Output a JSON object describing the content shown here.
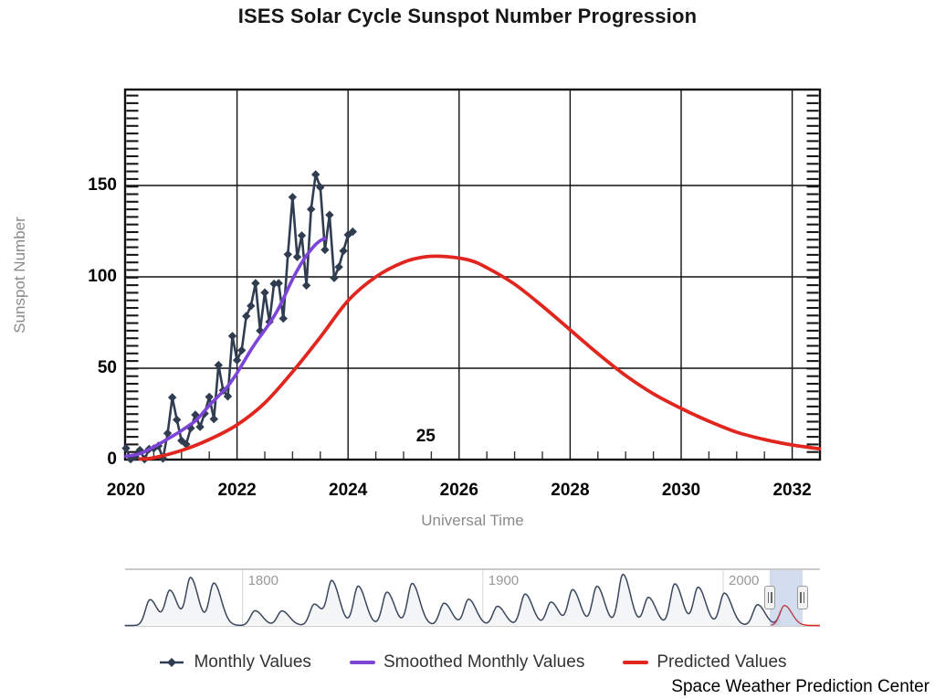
{
  "title": "ISES Solar Cycle Sunspot Number Progression",
  "credit": "Space Weather Prediction Center",
  "cycle_annotation": "25",
  "chart_data": {
    "type": "line",
    "title": "ISES Solar Cycle Sunspot Number Progression",
    "xlabel": "Universal Time",
    "ylabel": "Sunspot Number",
    "xlim": [
      2020,
      2032.5
    ],
    "ylim": [
      0,
      200
    ],
    "x_tick_years": [
      2020,
      2022,
      2024,
      2026,
      2028,
      2030,
      2032
    ],
    "x_tick_labels": [
      "2020",
      "2022",
      "2024",
      "2026",
      "2028",
      "2030",
      "2032"
    ],
    "y_tick_values": [
      0,
      50,
      100,
      150
    ],
    "y_tick_labels": [
      "0",
      "50",
      "100",
      "150"
    ],
    "grid": true,
    "legend_position": "bottom",
    "annotation": {
      "text": "25",
      "x": 2025.4,
      "y": 12
    },
    "series": [
      {
        "name": "Monthly Values",
        "color": "#303C50",
        "marker": "diamond",
        "x_start": 2020.0,
        "x_step_months": 1,
        "values": [
          6.2,
          0.2,
          1.5,
          5.2,
          0.2,
          5.8,
          6.1,
          7.5,
          0.6,
          14.4,
          34.0,
          21.8,
          10.4,
          8.4,
          17.2,
          24.5,
          17.9,
          25.2,
          34.3,
          22.2,
          51.7,
          37.9,
          34.6,
          67.6,
          54.4,
          59.8,
          78.5,
          84.1,
          96.5,
          70.5,
          91.4,
          75.4,
          96.2,
          96.5,
          77.2,
          112.3,
          143.6,
          110.9,
          122.6,
          95.3,
          137.0,
          156.0,
          149.0,
          114.8,
          133.9,
          99.4,
          105.4,
          114.2,
          123.0,
          124.7
        ]
      },
      {
        "name": "Smoothed Monthly Values",
        "color": "#7D44D8",
        "marker": "none",
        "x_start": 2020.0,
        "x_step_months": 1,
        "values": [
          1.8,
          2.2,
          2.6,
          3.2,
          4.3,
          5.6,
          7.0,
          8.3,
          9.8,
          11.3,
          12.8,
          14.3,
          15.9,
          17.6,
          19.3,
          21.2,
          23.8,
          26.7,
          29.6,
          32.3,
          34.8,
          37.4,
          40.2,
          43.6,
          47.4,
          51.6,
          55.8,
          60.0,
          63.9,
          67.4,
          70.9,
          74.5,
          78.4,
          82.9,
          88.0,
          93.4,
          98.7,
          103.5,
          107.8,
          111.6,
          114.9,
          117.7,
          119.8,
          121.0
        ]
      },
      {
        "name": "Predicted Values",
        "color": "#E0261E",
        "marker": "none",
        "points": [
          [
            2020.25,
            0.3
          ],
          [
            2020.5,
            1
          ],
          [
            2021,
            5
          ],
          [
            2021.5,
            11
          ],
          [
            2022,
            19
          ],
          [
            2022.5,
            31
          ],
          [
            2023,
            48
          ],
          [
            2023.5,
            67
          ],
          [
            2024,
            87
          ],
          [
            2024.5,
            100
          ],
          [
            2025,
            108
          ],
          [
            2025.4,
            111
          ],
          [
            2025.8,
            111
          ],
          [
            2026.2,
            109
          ],
          [
            2026.5,
            105
          ],
          [
            2027,
            96
          ],
          [
            2027.5,
            84
          ],
          [
            2028,
            71
          ],
          [
            2028.5,
            58
          ],
          [
            2029,
            46
          ],
          [
            2029.5,
            36
          ],
          [
            2030,
            28
          ],
          [
            2030.5,
            21
          ],
          [
            2031,
            15
          ],
          [
            2031.5,
            11
          ],
          [
            2032,
            8
          ],
          [
            2032.6,
            5.5
          ]
        ]
      }
    ]
  },
  "navigator": {
    "type": "area",
    "range_start_year": 1751,
    "range_end_year": 2040.3,
    "observed_end_year": 2024.15,
    "labels": [
      {
        "text": "1800",
        "year": 1800
      },
      {
        "text": "1900",
        "year": 1900
      },
      {
        "text": "2000",
        "year": 2000
      }
    ],
    "cycles_peak_year_amplitude": [
      [
        1761.5,
        144
      ],
      [
        1769.8,
        193
      ],
      [
        1778.4,
        264
      ],
      [
        1788.1,
        235
      ],
      [
        1805.2,
        82
      ],
      [
        1816.4,
        81
      ],
      [
        1829.9,
        119
      ],
      [
        1837.2,
        244
      ],
      [
        1848.1,
        219
      ],
      [
        1860.1,
        186
      ],
      [
        1870.6,
        234
      ],
      [
        1883.9,
        124
      ],
      [
        1894.1,
        146
      ],
      [
        1906.1,
        107
      ],
      [
        1917.6,
        175
      ],
      [
        1928.4,
        130
      ],
      [
        1937.4,
        198
      ],
      [
        1947.5,
        218
      ],
      [
        1958.3,
        285
      ],
      [
        1968.9,
        156
      ],
      [
        1979.9,
        232
      ],
      [
        1989.6,
        212
      ],
      [
        2000.5,
        180
      ],
      [
        2014.3,
        116
      ],
      [
        2025.5,
        111
      ]
    ],
    "predicted_cycle": {
      "peak_year": 2025.5,
      "amplitude": 111,
      "end_year": 2040.3
    },
    "selection": {
      "start_year": 2019.4,
      "end_year": 2032.9
    },
    "colors": {
      "line": "#39465C",
      "fill": "#F4F5F7",
      "predicted": "#E0261E",
      "mask": "rgba(102,133,194,0.28)",
      "grid": "#DDDDDD",
      "outline": "#AAAAAA"
    }
  },
  "legend": {
    "items": [
      {
        "label": "Monthly Values",
        "color": "#303C50",
        "marker": "diamond-line"
      },
      {
        "label": "Smoothed Monthly Values",
        "color": "#7D44D8",
        "marker": "line"
      },
      {
        "label": "Predicted Values",
        "color": "#E0261E",
        "marker": "line"
      }
    ]
  }
}
